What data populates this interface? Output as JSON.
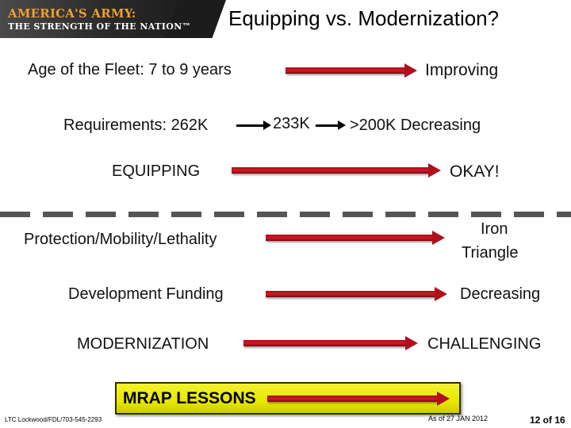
{
  "banner": {
    "line1": "AMERICA'S ARMY:",
    "line2": "THE STRENGTH OF THE NATION™"
  },
  "title": "Equipping vs. Modernization?",
  "rows": {
    "fleet": {
      "left": "Age of the Fleet:  7 to 9 years",
      "right": "Improving"
    },
    "requirements": {
      "left": "Requirements: 262K",
      "middle": "233K",
      "right": ">200K  Decreasing"
    },
    "equipping": {
      "left": "EQUIPPING",
      "right": "OKAY!"
    },
    "protection": {
      "left": "Protection/Mobility/Lethality",
      "right_line1": "Iron",
      "right_line2": "Triangle"
    },
    "funding": {
      "left": "Development Funding",
      "right": "Decreasing"
    },
    "modernization": {
      "left": "MODERNIZATION",
      "right": "CHALLENGING"
    }
  },
  "mrap": {
    "label": "MRAP LESSONS"
  },
  "footer": {
    "contact": "LTC Lockwood/FDL/703-545-2293",
    "as_of": "As of  27 JAN 2012",
    "page": "12 of 16"
  },
  "colors": {
    "arrow": "#c0121e",
    "mrap_box": "#e8e800",
    "banner_text": "#f0a030"
  }
}
